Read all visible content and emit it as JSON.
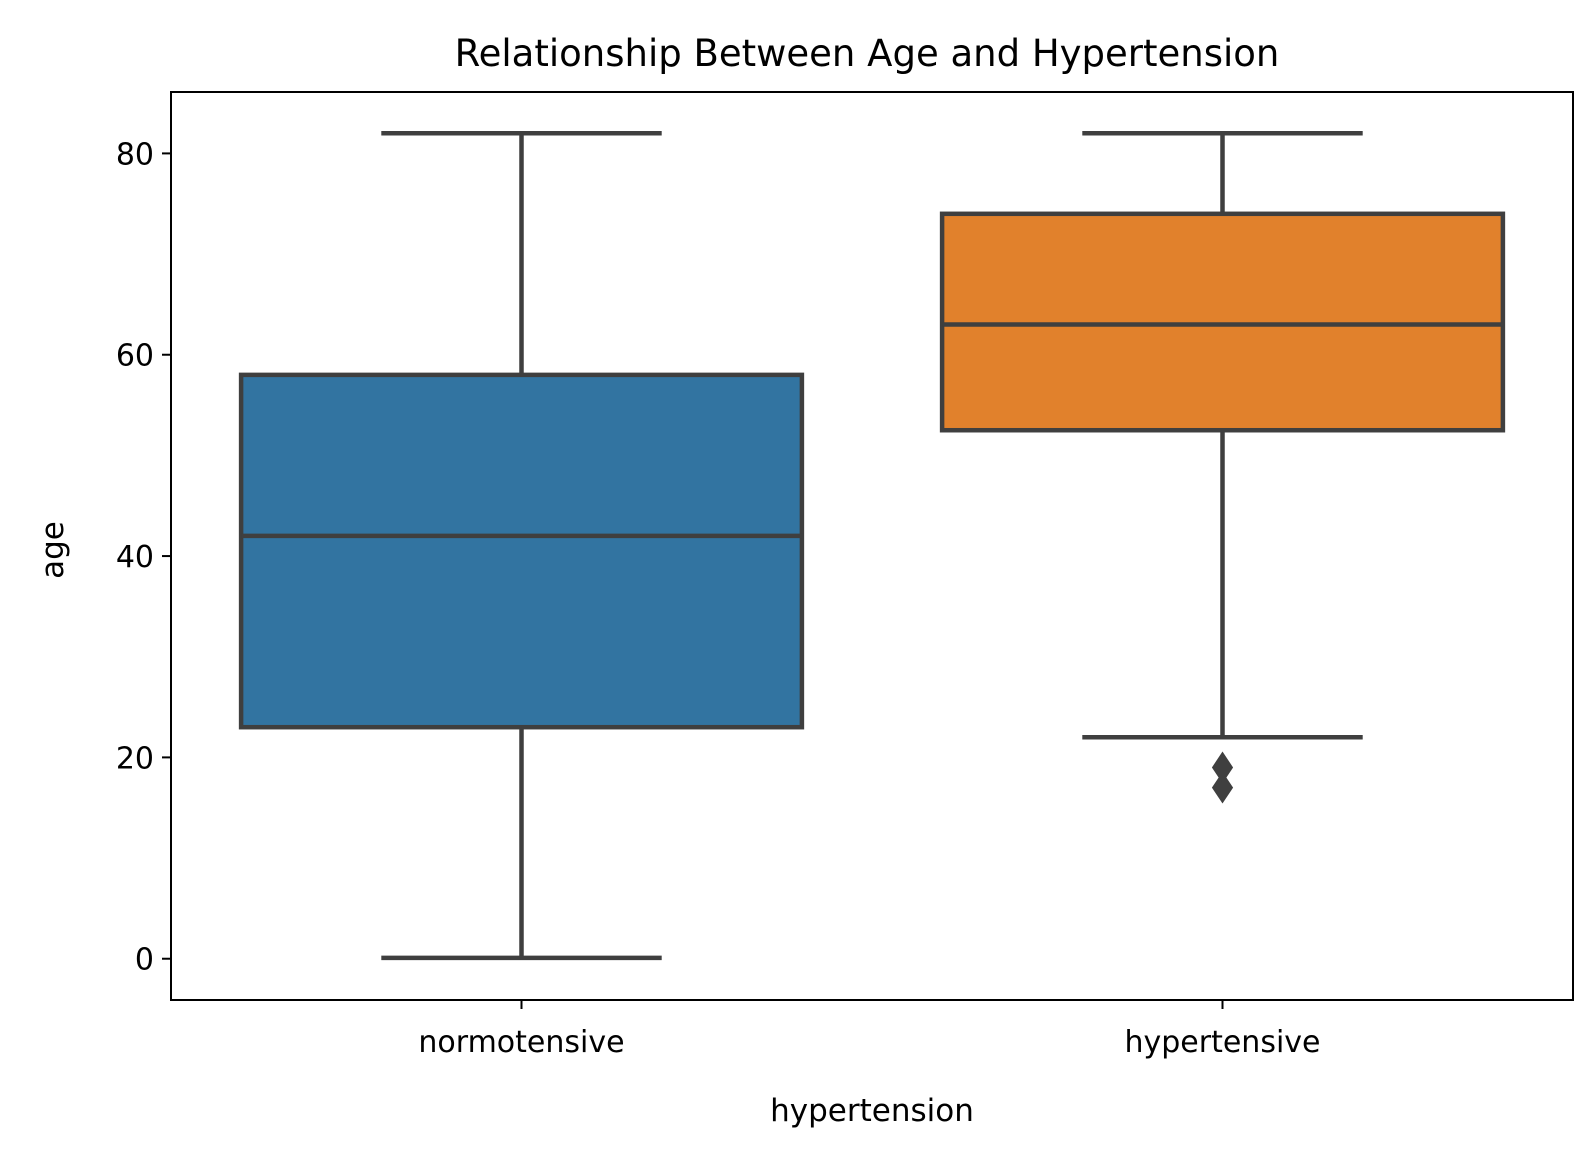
{
  "chart_data": {
    "type": "box",
    "title": "Relationship Between Age and Hypertension",
    "xlabel": "hypertension",
    "ylabel": "age",
    "ylim": [
      -4.1,
      86.1
    ],
    "yticks": [
      0,
      20,
      40,
      60,
      80
    ],
    "grid": false,
    "categories": [
      "normotensive",
      "hypertensive"
    ],
    "boxes": [
      {
        "category": "normotensive",
        "color": "#3274a1",
        "whisker_low": 0.08,
        "q1": 23,
        "median": 42,
        "q3": 58,
        "whisker_high": 82,
        "outliers": []
      },
      {
        "category": "hypertensive",
        "color": "#e1812c",
        "whisker_low": 22,
        "q1": 52.5,
        "median": 63,
        "q3": 74,
        "whisker_high": 82,
        "outliers": [
          17,
          19
        ]
      }
    ],
    "line_color": "#3f3f3f"
  }
}
